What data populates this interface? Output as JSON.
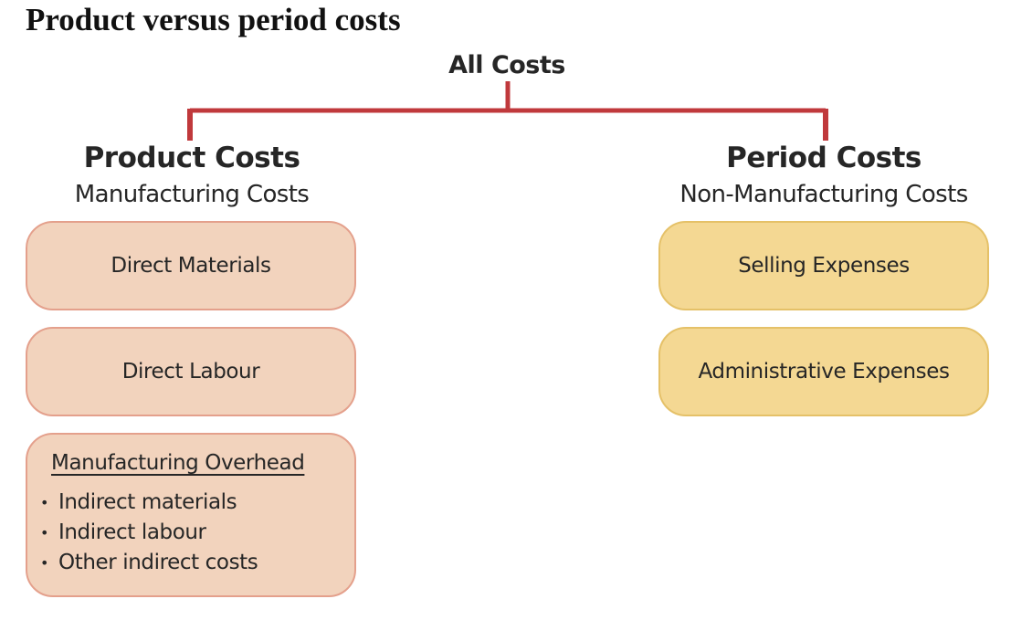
{
  "heading": "Product versus period costs",
  "root": {
    "label": "All Costs"
  },
  "product": {
    "title": "Product Costs",
    "subtitle": "Manufacturing Costs",
    "items": [
      {
        "label": "Direct Materials"
      },
      {
        "label": "Direct Labour"
      }
    ],
    "overhead": {
      "title": "Manufacturing Overhead",
      "bullet": "•",
      "items": [
        "Indirect materials",
        "Indirect labour",
        "Other indirect costs"
      ]
    }
  },
  "period": {
    "title": "Period Costs",
    "subtitle": "Non-Manufacturing Costs",
    "items": [
      {
        "label": "Selling Expenses"
      },
      {
        "label": "Administrative Expenses"
      }
    ]
  },
  "colors": {
    "connector": "#c0393c",
    "product_fill": "#f2d3bd",
    "product_border": "#e4a08c",
    "period_fill": "#f4d893",
    "period_border": "#e5c168"
  }
}
